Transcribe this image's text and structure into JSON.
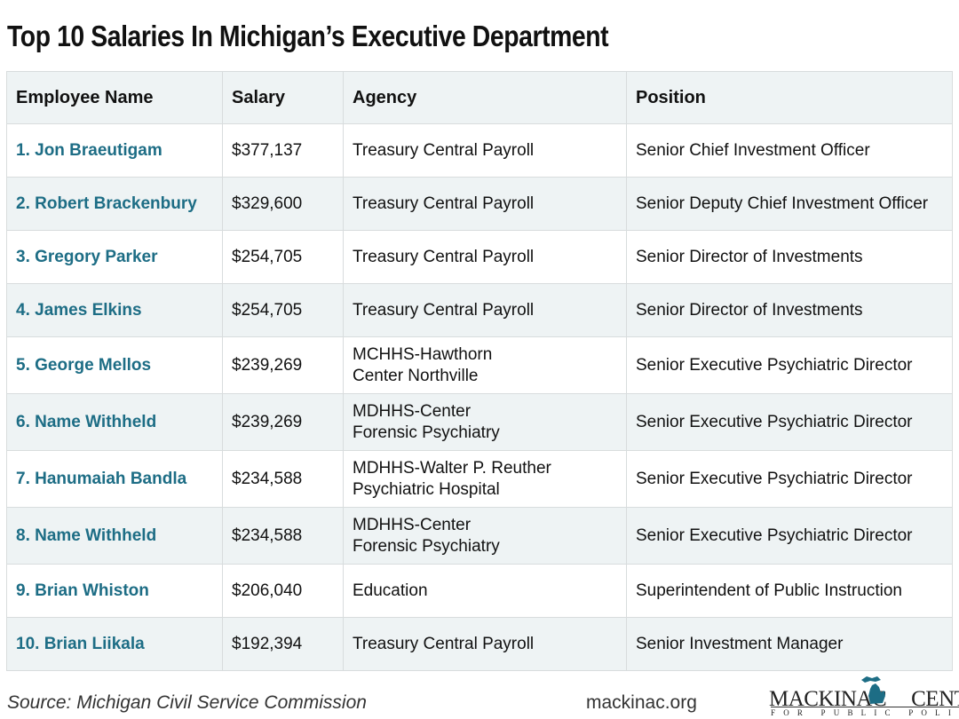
{
  "title": "Top 10 Salaries In Michigan’s Executive Department",
  "columns": [
    "Employee Name",
    "Salary",
    "Agency",
    "Position"
  ],
  "rows": [
    {
      "name": "1. Jon Braeutigam",
      "salary": "$377,137",
      "agency": [
        "Treasury Central Payroll"
      ],
      "position": "Senior Chief Investment Officer"
    },
    {
      "name": "2. Robert Brackenbury",
      "salary": "$329,600",
      "agency": [
        "Treasury Central Payroll"
      ],
      "position": "Senior Deputy Chief Investment Officer"
    },
    {
      "name": "3. Gregory Parker",
      "salary": "$254,705",
      "agency": [
        "Treasury Central Payroll"
      ],
      "position": "Senior Director of Investments"
    },
    {
      "name": "4. James Elkins",
      "salary": "$254,705",
      "agency": [
        "Treasury Central Payroll"
      ],
      "position": "Senior Director of Investments"
    },
    {
      "name": "5. George Mellos",
      "salary": "$239,269",
      "agency": [
        "MCHHS-Hawthorn",
        "Center Northville"
      ],
      "position": "Senior Executive Psychiatric Director"
    },
    {
      "name": "6. Name Withheld",
      "salary": "$239,269",
      "agency": [
        "MDHHS-Center",
        "Forensic Psychiatry"
      ],
      "position": "Senior Executive Psychiatric Director"
    },
    {
      "name": "7. Hanumaiah Bandla",
      "salary": "$234,588",
      "agency": [
        "MDHHS-Walter P. Reuther",
        "Psychiatric Hospital"
      ],
      "position": "Senior Executive Psychiatric Director"
    },
    {
      "name": "8. Name Withheld",
      "salary": "$234,588",
      "agency": [
        "MDHHS-Center",
        "Forensic Psychiatry"
      ],
      "position": "Senior Executive Psychiatric Director"
    },
    {
      "name": "9. Brian Whiston",
      "salary": "$206,040",
      "agency": [
        "Education"
      ],
      "position": "Superintendent of Public Instruction"
    },
    {
      "name": "10. Brian Liikala",
      "salary": "$192,394",
      "agency": [
        "Treasury Central Payroll"
      ],
      "position": "Senior Investment Manager"
    }
  ],
  "footer": {
    "source": "Source: Michigan Civil Service Commission",
    "url": "mackinac.org"
  },
  "logo": {
    "left": "MACKINAC",
    "right": "CENTER",
    "sub": "FOR PUBLIC POLICY"
  },
  "colors": {
    "name": "#1d6d85",
    "stripe": "#eef3f4",
    "logo": "#1d6d85"
  }
}
